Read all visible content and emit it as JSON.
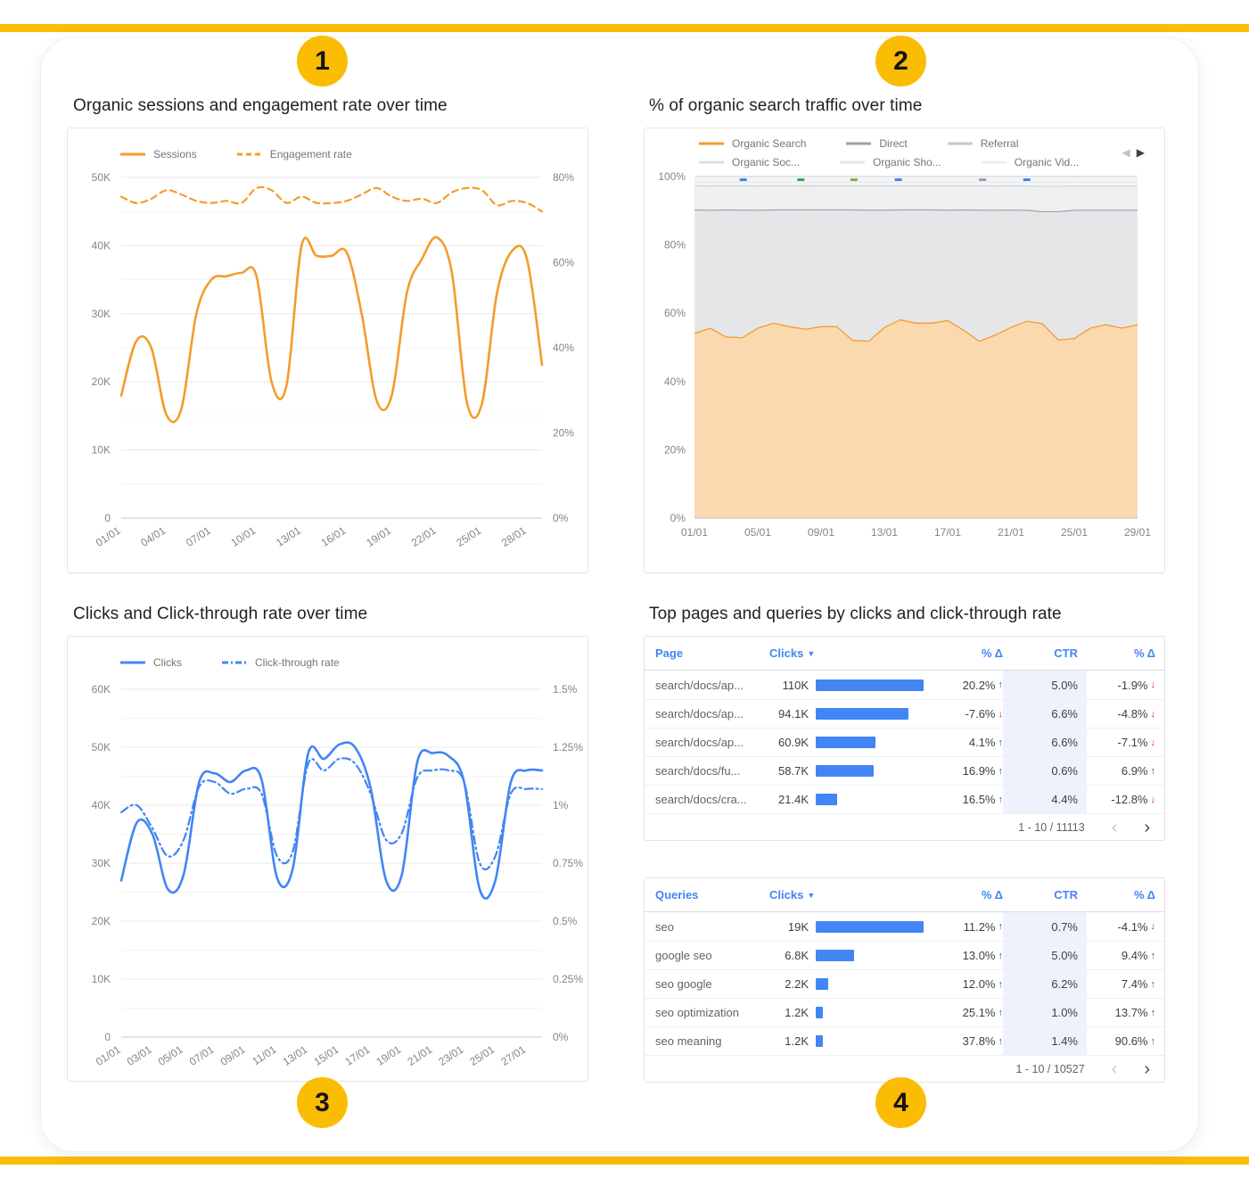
{
  "page": {
    "badges": [
      "1",
      "2",
      "3",
      "4"
    ]
  },
  "colors": {
    "yellow": "#FBBC04",
    "blue": "#4285F4",
    "orange": "#F59B2B",
    "green": "#188038",
    "red": "#D93025",
    "ctr_column_bg": "#EDF2FC"
  },
  "chart_data": [
    {
      "id": "sessions",
      "type": "line",
      "title": "Organic sessions and engagement rate over time",
      "legend": [
        [
          {
            "label": "Sessions",
            "color": "#F59B2B",
            "dash": "solid"
          },
          {
            "label": "Engagement rate",
            "color": "#F59B2B",
            "dash": "dashed"
          }
        ]
      ],
      "x_labels": [
        "01/01",
        "04/01",
        "07/01",
        "10/01",
        "13/01",
        "16/01",
        "19/01",
        "22/01",
        "25/01",
        "28/01"
      ],
      "x_label_step": 3,
      "left_axis": {
        "min": 0,
        "max": 50000,
        "ticks": [
          "50K",
          "40K",
          "30K",
          "20K",
          "10K",
          "0"
        ]
      },
      "right_axis": {
        "min": 0,
        "max": 80,
        "ticks": [
          "80%",
          "60%",
          "40%",
          "20%",
          "0%"
        ]
      },
      "series": [
        {
          "name": "Sessions",
          "axis": "left",
          "color": "#F59B2B",
          "dash": "",
          "width": 2.6,
          "values": [
            18000,
            26000,
            25000,
            15200,
            16000,
            30000,
            35000,
            35500,
            36000,
            35500,
            20000,
            19500,
            40000,
            38500,
            38500,
            39000,
            30000,
            17200,
            18000,
            33000,
            38000,
            41200,
            36000,
            17000,
            16800,
            33000,
            39200,
            38000,
            22500
          ]
        },
        {
          "name": "Engagement rate",
          "axis": "right",
          "color": "#F59B2B",
          "dash": "7 5",
          "width": 2.2,
          "values": [
            75.5,
            74,
            75,
            77,
            76,
            74.5,
            74,
            74.5,
            74,
            77.5,
            77,
            74,
            75.5,
            74,
            74,
            74.5,
            76,
            77.5,
            75.5,
            74.5,
            75,
            74,
            76.5,
            77.5,
            77,
            73.5,
            74.5,
            74,
            72
          ]
        }
      ]
    },
    {
      "id": "traffic",
      "type": "stacked",
      "title": "% of organic search traffic over time",
      "nav": {
        "left": "◀",
        "right": "▶"
      },
      "legend": [
        [
          {
            "label": "Organic Search",
            "color": "#F59B2B",
            "dash": "solid"
          },
          {
            "label": "Direct",
            "color": "#9AA0A6",
            "dash": "solid"
          },
          {
            "label": "Referral",
            "color": "#C6CACE",
            "dash": "solid"
          }
        ],
        [
          {
            "label": "Organic Soc...",
            "color": "#DADEE3",
            "dash": "solid"
          },
          {
            "label": "Organic Sho...",
            "color": "#E4E7EB",
            "dash": "solid"
          },
          {
            "label": "Organic Vid...",
            "color": "#EDEFF2",
            "dash": "solid"
          }
        ]
      ],
      "x_labels": [
        "01/01",
        "05/01",
        "09/01",
        "13/01",
        "17/01",
        "21/01",
        "25/01",
        "29/01"
      ],
      "x_label_step": 4,
      "y_ticks": [
        "100%",
        "80%",
        "60%",
        "40%",
        "20%",
        "0%"
      ],
      "series": [
        {
          "name": "Organic Search",
          "fill": "#FAD9AE",
          "stroke": "#F59B2B",
          "sw": 2.6,
          "values": [
            54,
            55,
            53,
            52.5,
            55,
            57,
            56,
            55.5,
            56,
            56,
            52,
            51.5,
            55.5,
            58,
            57,
            57,
            57.5,
            55,
            51.5,
            53,
            55.5,
            57,
            54,
            49.5,
            52,
            55,
            56,
            55,
            56
          ]
        },
        {
          "name": "Direct",
          "fill": "#E5E6E8",
          "stroke": "#9AA0A6",
          "sw": 2.2,
          "values": [
            36,
            34,
            37,
            37,
            34,
            33,
            34,
            35,
            34,
            34,
            38,
            38,
            34,
            32,
            33,
            33,
            32,
            35,
            38,
            36,
            34,
            32,
            31,
            35.5,
            37,
            34,
            33,
            34,
            33
          ]
        },
        {
          "name": "Referral",
          "fill": "#EEEFF1",
          "stroke": "#C8CCD0",
          "sw": 2,
          "values": [
            7,
            7,
            7,
            7,
            7,
            7,
            7,
            7,
            7,
            7,
            7,
            7,
            7,
            7,
            7,
            7,
            7,
            7,
            7,
            7,
            7,
            7,
            7,
            7,
            7,
            7,
            7,
            7,
            7
          ]
        },
        {
          "name": "Organic Social",
          "fill": "#F3F4F6",
          "stroke": "#DDE0E3",
          "sw": 1.5,
          "values": [
            1.2,
            1.2,
            1.2,
            1.2,
            1.2,
            1.2,
            1.2,
            1.2,
            1.2,
            1.2,
            1.2,
            1.2,
            1.2,
            1.2,
            1.2,
            1.2,
            1.2,
            1.2,
            1.2,
            1.2,
            1.2,
            1.2,
            1.2,
            1.2,
            1.2,
            1.2,
            1.2,
            1.2,
            1.2
          ]
        },
        {
          "name": "Organic Shopping",
          "fill": "#F7F8F9",
          "stroke": "#E6E8EA",
          "sw": 1.5,
          "values": [
            0.8,
            0.8,
            0.8,
            0.8,
            0.8,
            0.8,
            0.8,
            0.8,
            0.8,
            0.8,
            0.8,
            0.8,
            0.8,
            0.8,
            0.8,
            0.8,
            0.8,
            0.8,
            0.8,
            0.8,
            0.8,
            0.8,
            0.8,
            0.8,
            0.8,
            0.8,
            0.8,
            0.8,
            0.8
          ]
        },
        {
          "name": "Organic Video",
          "fill": "#FAFBFC",
          "stroke": "#DADCE0",
          "sw": 1.5,
          "values": [
            0.6,
            0.6,
            0.6,
            0.6,
            0.6,
            0.6,
            0.6,
            0.6,
            0.6,
            0.6,
            0.6,
            0.6,
            0.6,
            0.6,
            0.6,
            0.6,
            0.6,
            0.6,
            0.6,
            0.6,
            0.6,
            0.6,
            0.6,
            0.6,
            0.6,
            0.6,
            0.6,
            0.6,
            0.6
          ]
        }
      ],
      "top_marks": [
        {
          "x": 0.11,
          "color": "#4285F4"
        },
        {
          "x": 0.24,
          "color": "#34A853"
        },
        {
          "x": 0.36,
          "color": "#7CB342"
        },
        {
          "x": 0.46,
          "color": "#4285F4"
        },
        {
          "x": 0.65,
          "color": "#9AA0A6"
        },
        {
          "x": 0.75,
          "color": "#4285F4"
        }
      ]
    },
    {
      "id": "clicks",
      "type": "line",
      "title": "Clicks and Click-through rate over time",
      "legend": [
        [
          {
            "label": "Clicks",
            "color": "#4285F4",
            "dash": "solid"
          },
          {
            "label": "Click-through rate",
            "color": "#4285F4",
            "dash": "dashdot"
          }
        ]
      ],
      "x_labels": [
        "01/01",
        "03/01",
        "05/01",
        "07/01",
        "09/01",
        "11/01",
        "13/01",
        "15/01",
        "17/01",
        "19/01",
        "21/01",
        "23/01",
        "25/01",
        "27/01"
      ],
      "x_label_step": 2,
      "left_axis": {
        "min": 0,
        "max": 60000,
        "ticks": [
          "60K",
          "50K",
          "40K",
          "30K",
          "20K",
          "10K",
          "0"
        ]
      },
      "right_axis": {
        "min": 0,
        "max": 1.5,
        "ticks": [
          "1.5%",
          "1.25%",
          "1%",
          "0.75%",
          "0.5%",
          "0.25%",
          "0%"
        ]
      },
      "series": [
        {
          "name": "Clicks",
          "axis": "left",
          "color": "#4285F4",
          "dash": "",
          "width": 2.6,
          "values": [
            27000,
            37000,
            35000,
            25500,
            28000,
            44000,
            45500,
            44000,
            46000,
            44500,
            27500,
            29000,
            49000,
            48000,
            50500,
            50000,
            43000,
            27000,
            28000,
            47500,
            49000,
            48500,
            44000,
            25500,
            27000,
            44000,
            46000,
            46000
          ]
        },
        {
          "name": "Click-through rate",
          "axis": "right",
          "color": "#4285F4",
          "dash": "9 4 2 4",
          "width": 2.2,
          "values": [
            0.97,
            1.0,
            0.9,
            0.78,
            0.85,
            1.08,
            1.1,
            1.05,
            1.07,
            1.05,
            0.78,
            0.8,
            1.18,
            1.15,
            1.2,
            1.18,
            1.05,
            0.85,
            0.88,
            1.12,
            1.15,
            1.15,
            1.1,
            0.75,
            0.78,
            1.05,
            1.07,
            1.07
          ]
        }
      ]
    }
  ],
  "tables": {
    "section_title": "Top pages and queries by clicks and click-through rate",
    "icons": {
      "sort": "▼",
      "prev": "‹",
      "next": "›",
      "up": "↑",
      "down": "↓"
    },
    "list": [
      {
        "id": "pages",
        "columns": {
          "name": "Page",
          "clicks": "Clicks",
          "delta1": "% Δ",
          "ctr": "CTR",
          "delta2": "% Δ"
        },
        "rows": [
          {
            "name": "search/docs/ap...",
            "clicks_label": "110K",
            "clicks": 110000,
            "delta1": "20.2%",
            "delta1_dir": "up",
            "ctr": "5.0%",
            "delta2": "-1.9%",
            "delta2_dir": "down"
          },
          {
            "name": "search/docs/ap...",
            "clicks_label": "94.1K",
            "clicks": 94100,
            "delta1": "-7.6%",
            "delta1_dir": "down",
            "ctr": "6.6%",
            "delta2": "-4.8%",
            "delta2_dir": "down"
          },
          {
            "name": "search/docs/ap...",
            "clicks_label": "60.9K",
            "clicks": 60900,
            "delta1": "4.1%",
            "delta1_dir": "up",
            "ctr": "6.6%",
            "delta2": "-7.1%",
            "delta2_dir": "down"
          },
          {
            "name": "search/docs/fu...",
            "clicks_label": "58.7K",
            "clicks": 58700,
            "delta1": "16.9%",
            "delta1_dir": "up",
            "ctr": "0.6%",
            "delta2": "6.9%",
            "delta2_dir": "up"
          },
          {
            "name": "search/docs/cra...",
            "clicks_label": "21.4K",
            "clicks": 21400,
            "delta1": "16.5%",
            "delta1_dir": "up",
            "ctr": "4.4%",
            "delta2": "-12.8%",
            "delta2_dir": "down"
          }
        ],
        "footer": "1 - 10 / 11113"
      },
      {
        "id": "queries",
        "columns": {
          "name": "Queries",
          "clicks": "Clicks",
          "delta1": "% Δ",
          "ctr": "CTR",
          "delta2": "% Δ"
        },
        "rows": [
          {
            "name": "seo",
            "clicks_label": "19K",
            "clicks": 19000,
            "delta1": "11.2%",
            "delta1_dir": "up",
            "ctr": "0.7%",
            "delta2": "-4.1%",
            "delta2_dir": "down"
          },
          {
            "name": "google seo",
            "clicks_label": "6.8K",
            "clicks": 6800,
            "delta1": "13.0%",
            "delta1_dir": "up",
            "ctr": "5.0%",
            "delta2": "9.4%",
            "delta2_dir": "up"
          },
          {
            "name": "seo google",
            "clicks_label": "2.2K",
            "clicks": 2200,
            "delta1": "12.0%",
            "delta1_dir": "up",
            "ctr": "6.2%",
            "delta2": "7.4%",
            "delta2_dir": "up"
          },
          {
            "name": "seo optimization",
            "clicks_label": "1.2K",
            "clicks": 1200,
            "delta1": "25.1%",
            "delta1_dir": "up",
            "ctr": "1.0%",
            "delta2": "13.7%",
            "delta2_dir": "up"
          },
          {
            "name": "seo meaning",
            "clicks_label": "1.2K",
            "clicks": 1200,
            "delta1": "37.8%",
            "delta1_dir": "up",
            "ctr": "1.4%",
            "delta2": "90.6%",
            "delta2_dir": "up"
          }
        ],
        "footer": "1 - 10 / 10527"
      }
    ]
  }
}
